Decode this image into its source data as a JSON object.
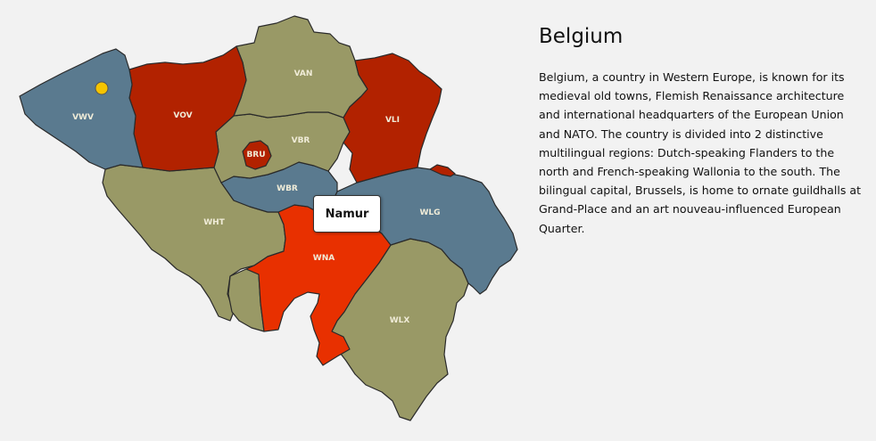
{
  "country": {
    "title": "Belgium",
    "description": "Belgium, a country in Western Europe, is known for its medieval old towns, Flemish Renaissance architecture and international headquarters of the European Union and NATO. The country is divided into 2 distinctive multilingual regions: Dutch-speaking Flanders to the north and French-speaking Wallonia to the south. The bilingual capital, Brussels, is home to ornate guildhalls at Grand-Place and an art nouveau-influenced European Quarter."
  },
  "tooltip": {
    "label": "Namur"
  },
  "colors": {
    "olive": "#999966",
    "slate": "#5a7a8f",
    "red": "#b22200",
    "highlight": "#e83000",
    "marker": "#f5c400"
  },
  "provinces": [
    {
      "code": "VWV",
      "label": "VWV",
      "color": "#5a7a8f"
    },
    {
      "code": "VOV",
      "label": "VOV",
      "color": "#b22200"
    },
    {
      "code": "VAN",
      "label": "VAN",
      "color": "#999966"
    },
    {
      "code": "VLI",
      "label": "VLI",
      "color": "#b22200"
    },
    {
      "code": "VBR",
      "label": "VBR",
      "color": "#999966"
    },
    {
      "code": "BRU",
      "label": "BRU",
      "color": "#b22200"
    },
    {
      "code": "WBR",
      "label": "WBR",
      "color": "#5a7a8f"
    },
    {
      "code": "WHT",
      "label": "WHT",
      "color": "#999966"
    },
    {
      "code": "WNA",
      "label": "WNA",
      "color": "#e83000"
    },
    {
      "code": "WLG",
      "label": "WLG",
      "color": "#5a7a8f"
    },
    {
      "code": "WLX",
      "label": "WLX",
      "color": "#999966"
    }
  ],
  "marker": {
    "name": "location-marker",
    "color": "#f5c400"
  }
}
